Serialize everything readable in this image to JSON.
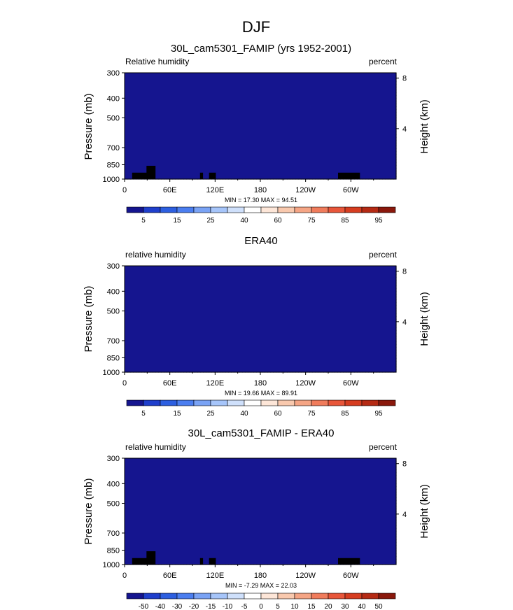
{
  "figure_title": "DJF",
  "colors": {
    "cb1": [
      "#15158f",
      "#1f3fcc",
      "#2d5fe0",
      "#4b7ef0",
      "#7aa3f5",
      "#a6c5fa",
      "#cfe0fb",
      "#ffffff",
      "#fde6d8",
      "#f9c9ae",
      "#f5a585",
      "#f07c5c",
      "#e8563a",
      "#d63d20",
      "#b52a14",
      "#8a180c"
    ],
    "cb2": [
      "#15158f",
      "#1f3fcc",
      "#2d5fe0",
      "#4b7ef0",
      "#7aa3f5",
      "#a6c5fa",
      "#cfe0fb",
      "#ffffff",
      "#fde6d8",
      "#f9c9ae",
      "#f5a585",
      "#f07c5c",
      "#e8563a",
      "#d63d20",
      "#b52a14",
      "#8a180c"
    ],
    "terrain": "#000000"
  },
  "chart_data": [
    {
      "type": "heatmap",
      "title": "30L_cam5301_FAMIP (yrs 1952-2001)",
      "left_label": "Relative humidity",
      "right_label": "percent",
      "ylabel": "Pressure (mb)",
      "y2label": "Height (km)",
      "x_ticks": [
        "0",
        "60E",
        "120E",
        "180",
        "120W",
        "60W"
      ],
      "y_ticks": [
        "300",
        "400",
        "500",
        "700",
        "850",
        "1000"
      ],
      "y2_ticks": [
        "8",
        "4"
      ],
      "stats": "MIN = 17.30   MAX = 94.51",
      "colorbar_ticks": [
        "5",
        "15",
        "25",
        "40",
        "60",
        "75",
        "85",
        "95"
      ],
      "colorbar_levels": [
        0,
        5,
        10,
        15,
        20,
        25,
        30,
        40,
        50,
        60,
        70,
        75,
        80,
        85,
        90,
        95,
        100
      ],
      "field": "humidity",
      "variant": 1,
      "has_terrain": true
    },
    {
      "type": "heatmap",
      "title": "ERA40",
      "left_label": "relative humidity",
      "right_label": "percent",
      "ylabel": "Pressure (mb)",
      "y2label": "Height (km)",
      "x_ticks": [
        "0",
        "60E",
        "120E",
        "180",
        "120W",
        "60W"
      ],
      "y_ticks": [
        "300",
        "400",
        "500",
        "700",
        "850",
        "1000"
      ],
      "y2_ticks": [
        "8",
        "4"
      ],
      "stats": "MIN = 19.66   MAX = 89.91",
      "colorbar_ticks": [
        "5",
        "15",
        "25",
        "40",
        "60",
        "75",
        "85",
        "95"
      ],
      "colorbar_levels": [
        0,
        5,
        10,
        15,
        20,
        25,
        30,
        40,
        50,
        60,
        70,
        75,
        80,
        85,
        90,
        95,
        100
      ],
      "field": "humidity",
      "variant": 2,
      "has_terrain": false
    },
    {
      "type": "heatmap",
      "title": "30L_cam5301_FAMIP - ERA40",
      "left_label": "relative humidity",
      "right_label": "percent",
      "ylabel": "Pressure (mb)",
      "y2label": "Height (km)",
      "x_ticks": [
        "0",
        "60E",
        "120E",
        "180",
        "120W",
        "60W"
      ],
      "y_ticks": [
        "300",
        "400",
        "500",
        "700",
        "850",
        "1000"
      ],
      "y2_ticks": [
        "8",
        "4"
      ],
      "stats": "MIN = -7.29   MAX = 22.03",
      "colorbar_ticks": [
        "-50",
        "-40",
        "-30",
        "-20",
        "-15",
        "-10",
        "-5",
        "0",
        "5",
        "10",
        "15",
        "20",
        "30",
        "40",
        "50"
      ],
      "colorbar_levels": [
        -60,
        -50,
        -40,
        -30,
        -20,
        -15,
        -10,
        -5,
        0,
        5,
        10,
        15,
        20,
        30,
        40,
        50,
        60
      ],
      "field": "difference",
      "variant": 3,
      "has_terrain": true
    }
  ]
}
